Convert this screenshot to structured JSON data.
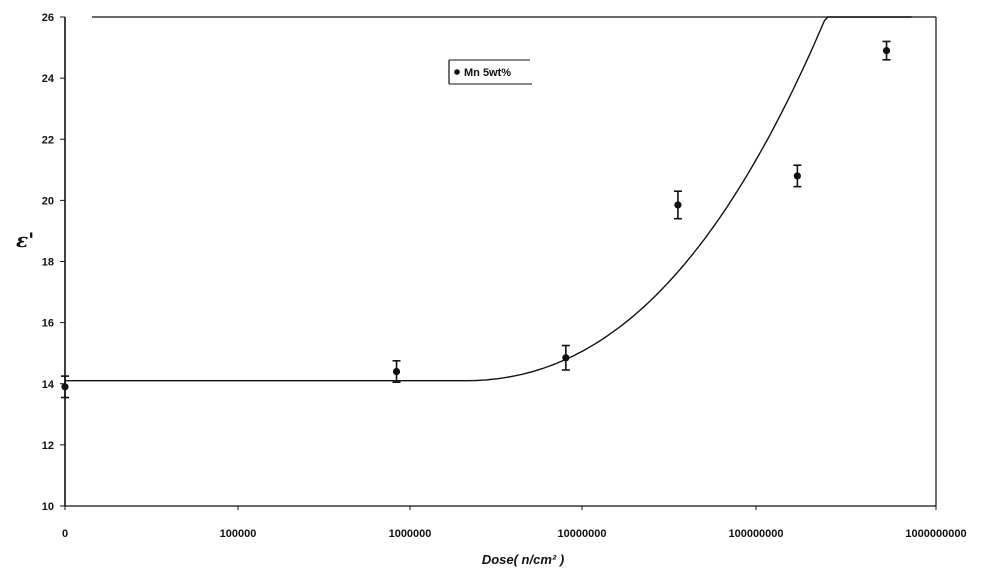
{
  "chart_data": {
    "type": "scatter",
    "xlabel": "Dose( n/cm² )",
    "ylabel": "ε'",
    "x_scale": "log",
    "xlim": [
      10000,
      1000000000
    ],
    "ylim": [
      10,
      26
    ],
    "y_ticks": [
      "10",
      "12",
      "14",
      "16",
      "18",
      "20",
      "22",
      "24",
      "26"
    ],
    "x_ticks": [
      "0",
      "100000",
      "1000000",
      "10000000",
      "100000000",
      "1000000000"
    ],
    "grid": false,
    "legend_position": "top-center",
    "series": [
      {
        "name": "Mn 5wt%",
        "x": [
          0,
          800000,
          7500000,
          33000000,
          160000000,
          520000000
        ],
        "y": [
          13.9,
          14.4,
          14.85,
          19.85,
          20.8,
          24.9
        ],
        "error": [
          0.35,
          0.35,
          0.4,
          0.45,
          0.35,
          0.3
        ]
      }
    ]
  }
}
